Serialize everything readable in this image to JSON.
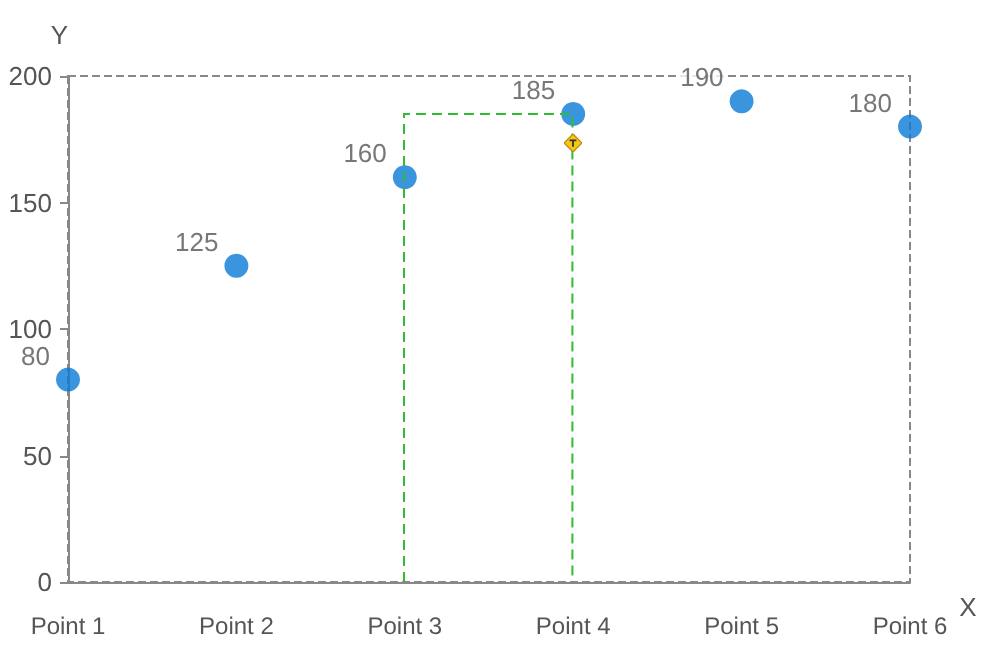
{
  "chart_data": {
    "type": "scatter",
    "xlabel": "X",
    "ylabel": "Y",
    "categories": [
      "Point 1",
      "Point 2",
      "Point 3",
      "Point 4",
      "Point 5",
      "Point 6"
    ],
    "series": [
      {
        "color": "#0a7bd6",
        "values": [
          80,
          125,
          160,
          185,
          190,
          180
        ]
      }
    ],
    "ylim": [
      0,
      200
    ],
    "yticks": [
      0,
      50,
      100,
      150,
      200
    ],
    "data_labels": true,
    "grid": false,
    "marker": "circle"
  }
}
